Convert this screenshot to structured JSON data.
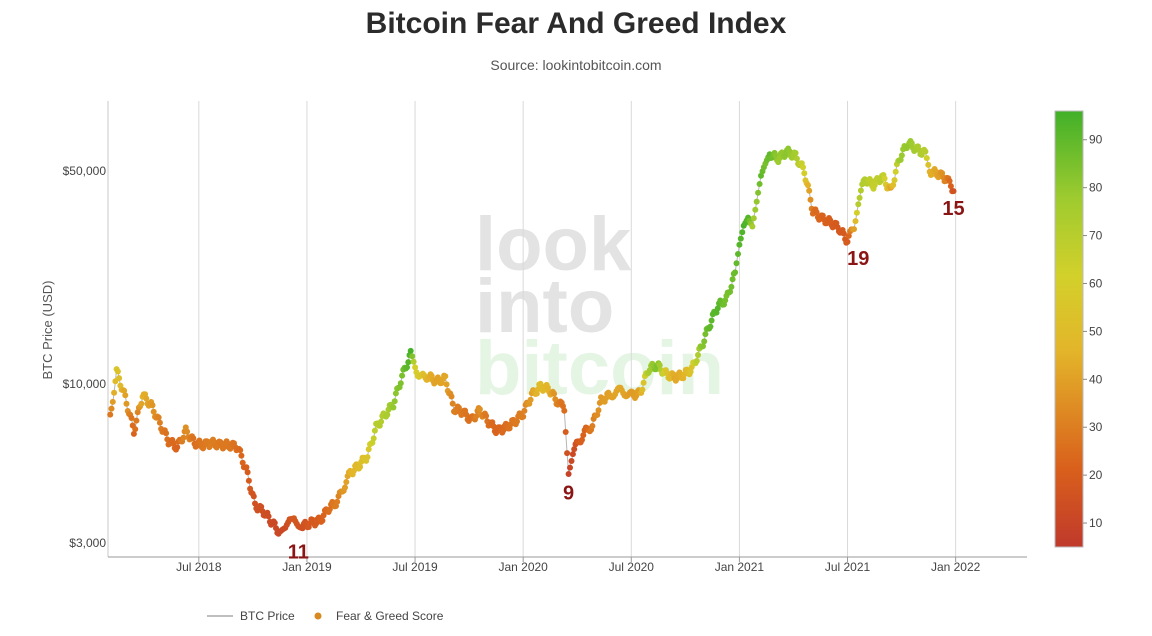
{
  "chart_data": {
    "type": "scatter",
    "title": "Bitcoin Fear And Greed Index",
    "subtitle": "Source: lookintobitcoin.com",
    "ylabel": "BTC Price (USD)",
    "xlabel": "",
    "y_scale": "log",
    "ylim": [
      2700,
      85000
    ],
    "xlim": [
      2018.08,
      2022.33
    ],
    "y_ticks": [
      {
        "value": 3000,
        "label": "$3,000"
      },
      {
        "value": 10000,
        "label": "$10,000"
      },
      {
        "value": 50000,
        "label": "$50,000"
      }
    ],
    "x_ticks": [
      {
        "value": 2018.5,
        "label": "Jul 2018"
      },
      {
        "value": 2019.0,
        "label": "Jan 2019"
      },
      {
        "value": 2019.5,
        "label": "Jul 2019"
      },
      {
        "value": 2020.0,
        "label": "Jan 2020"
      },
      {
        "value": 2020.5,
        "label": "Jul 2020"
      },
      {
        "value": 2021.0,
        "label": "Jan 2021"
      },
      {
        "value": 2021.5,
        "label": "Jul 2021"
      },
      {
        "value": 2022.0,
        "label": "Jan 2022"
      }
    ],
    "grid": {
      "vertical": true,
      "horizontal": false
    },
    "colorbar": {
      "label": "Fear & Greed Score",
      "min": 5,
      "max": 96,
      "ticks": [
        10,
        20,
        30,
        40,
        50,
        60,
        70,
        80,
        90
      ],
      "colors": {
        "low": "#c0392b",
        "mid": "#e0c22a",
        "high": "#41b029"
      }
    },
    "annotations": [
      {
        "label": "11",
        "x": 2018.96,
        "y": 3200,
        "placement": "below"
      },
      {
        "label": "9",
        "x": 2020.21,
        "y": 5000,
        "placement": "below"
      },
      {
        "label": "19",
        "x": 2021.55,
        "y": 29500,
        "placement": "below"
      },
      {
        "label": "15",
        "x": 2021.99,
        "y": 43000,
        "placement": "below"
      }
    ],
    "legend": {
      "position": "bottom-left",
      "items": [
        {
          "label": "BTC Price",
          "marker": "line",
          "color": "#aaaaaa"
        },
        {
          "label": "Fear & Greed Score",
          "marker": "dot",
          "color": "#d68a1f"
        }
      ]
    },
    "watermark": [
      "look",
      "into",
      "bitcoin"
    ],
    "series": [
      {
        "name": "BTC Price",
        "x": [
          2018.09,
          2018.12,
          2018.16,
          2018.2,
          2018.24,
          2018.28,
          2018.32,
          2018.36,
          2018.4,
          2018.44,
          2018.48,
          2018.52,
          2018.56,
          2018.6,
          2018.64,
          2018.68,
          2018.72,
          2018.76,
          2018.8,
          2018.84,
          2018.88,
          2018.9,
          2018.92,
          2018.94,
          2018.96,
          2018.98,
          2019.02,
          2019.06,
          2019.1,
          2019.14,
          2019.2,
          2019.24,
          2019.28,
          2019.32,
          2019.36,
          2019.4,
          2019.44,
          2019.48,
          2019.5,
          2019.53,
          2019.56,
          2019.6,
          2019.64,
          2019.68,
          2019.72,
          2019.76,
          2019.8,
          2019.84,
          2019.88,
          2019.92,
          2019.96,
          2020.0,
          2020.04,
          2020.08,
          2020.12,
          2020.16,
          2020.19,
          2020.21,
          2020.23,
          2020.26,
          2020.29,
          2020.32,
          2020.36,
          2020.4,
          2020.45,
          2020.5,
          2020.54,
          2020.58,
          2020.62,
          2020.66,
          2020.7,
          2020.74,
          2020.78,
          2020.82,
          2020.86,
          2020.9,
          2020.94,
          2020.98,
          2021.0,
          2021.02,
          2021.04,
          2021.06,
          2021.08,
          2021.1,
          2021.12,
          2021.14,
          2021.18,
          2021.22,
          2021.26,
          2021.3,
          2021.34,
          2021.38,
          2021.42,
          2021.46,
          2021.5,
          2021.53,
          2021.55,
          2021.58,
          2021.62,
          2021.66,
          2021.7,
          2021.74,
          2021.78,
          2021.82,
          2021.86,
          2021.88,
          2021.92,
          2021.96,
          2021.99
        ],
        "y": [
          7800,
          11000,
          9000,
          7000,
          9200,
          8500,
          7400,
          6500,
          6200,
          7000,
          6400,
          6300,
          6400,
          6300,
          6300,
          6200,
          5200,
          4000,
          3800,
          3500,
          3200,
          3300,
          3600,
          3700,
          3500,
          3400,
          3500,
          3550,
          3900,
          4100,
          5100,
          5400,
          5800,
          7200,
          7900,
          8600,
          10600,
          12500,
          11200,
          10500,
          10600,
          10200,
          10400,
          8300,
          8100,
          7600,
          8200,
          7500,
          7000,
          7200,
          7500,
          8000,
          9200,
          9800,
          9600,
          8700,
          8300,
          5200,
          6000,
          6500,
          7000,
          7300,
          8800,
          9200,
          9500,
          9200,
          9300,
          11200,
          11500,
          10800,
          10500,
          10700,
          11200,
          13000,
          15500,
          18000,
          19000,
          23000,
          29000,
          34000,
          36000,
          33000,
          39000,
          47000,
          52000,
          57000,
          55000,
          58000,
          56000,
          50000,
          37000,
          35000,
          34000,
          32500,
          29500,
          33000,
          40000,
          47000,
          45000,
          48000,
          43000,
          55000,
          62000,
          59000,
          57000,
          50000,
          49000,
          47000,
          43000
        ],
        "score": [
          28,
          55,
          40,
          22,
          45,
          38,
          30,
          25,
          22,
          35,
          25,
          28,
          30,
          28,
          28,
          25,
          20,
          15,
          14,
          12,
          11,
          12,
          15,
          18,
          16,
          15,
          18,
          20,
          25,
          30,
          45,
          50,
          55,
          70,
          72,
          80,
          85,
          95,
          60,
          55,
          45,
          40,
          42,
          30,
          28,
          25,
          35,
          25,
          22,
          25,
          28,
          30,
          40,
          50,
          45,
          30,
          25,
          9,
          12,
          20,
          22,
          30,
          38,
          40,
          42,
          38,
          40,
          75,
          85,
          55,
          42,
          45,
          55,
          80,
          90,
          92,
          85,
          88,
          92,
          94,
          92,
          75,
          80,
          90,
          85,
          90,
          78,
          82,
          75,
          60,
          25,
          22,
          20,
          18,
          19,
          40,
          70,
          72,
          65,
          70,
          40,
          78,
          80,
          75,
          70,
          45,
          40,
          30,
          15
        ]
      }
    ]
  }
}
